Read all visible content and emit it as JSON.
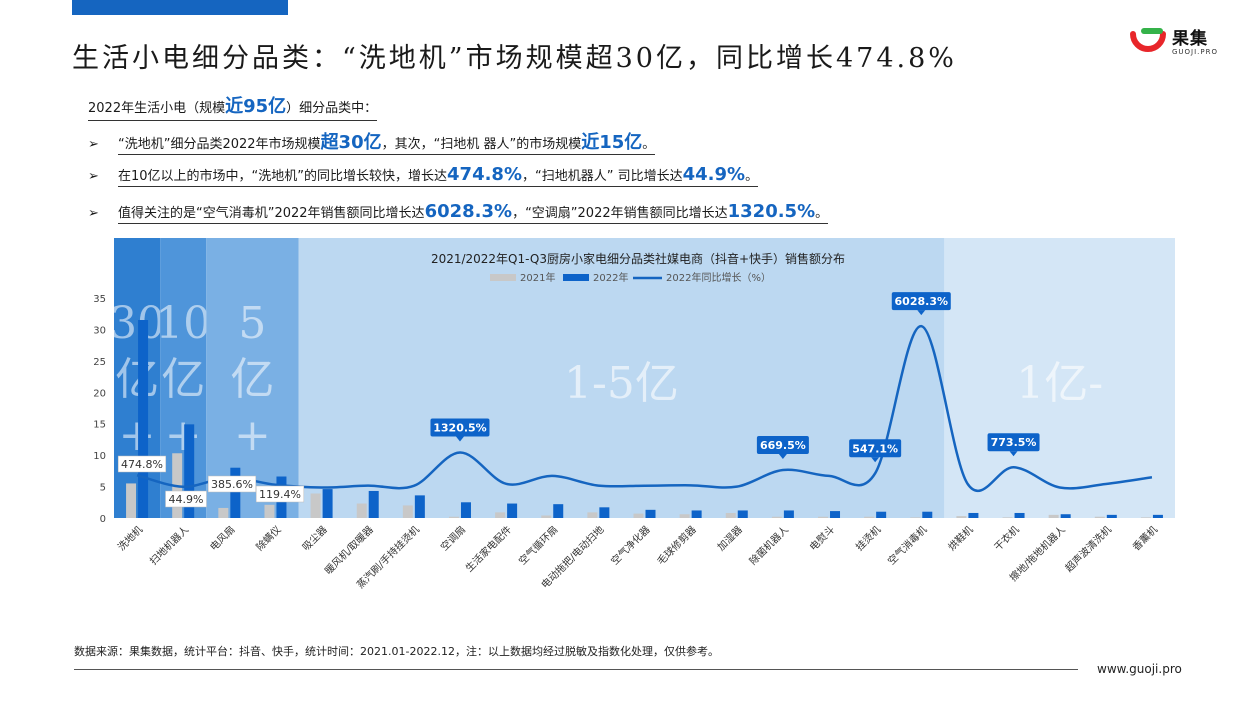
{
  "header": {
    "title": "生活小电细分品类：“洗地机”市场规模超30亿，同比增长474.8%",
    "logo_text": "果集",
    "logo_sub": "GUOJI.PRO"
  },
  "summary": {
    "intro_pre": "2022年生活小电（规模",
    "intro_hl": "近95亿",
    "intro_post": "）细分品类中：",
    "arrow": "➢",
    "b1_a": "“洗地机”细分品类2022年市场规模",
    "b1_hl1": "超30亿",
    "b1_b": "，其次，“扫地机 器人”的市场规模",
    "b1_hl2": "近15亿",
    "b1_c": "。",
    "b2_a": "在10亿以上的市场中，“洗地机”的同比增长较快，增长达",
    "b2_hl1": "474.8%",
    "b2_b": "，“扫地机器人” 司比增长达",
    "b2_hl2": "44.9%",
    "b2_c": "。",
    "b3_a": "值得关注的是“空气消毒机”2022年销售额同比增长达",
    "b3_hl1": "6028.3%",
    "b3_b": "，“空调扇”2022年销售额同比增长达",
    "b3_hl2": "1320.5%",
    "b3_c": "。"
  },
  "chart_data": {
    "type": "bar",
    "title": "2021/2022年Q1-Q3厨房小家电细分品类社媒电商（抖音+快手）销售额分布",
    "legend": [
      "2021年",
      "2022年",
      "2022年同比增长（%）"
    ],
    "legend_position": "top",
    "colors": {
      "y2021": "#c8c8c8",
      "y2022": "#0d63c9",
      "line": "#1565c0"
    },
    "ylim": [
      0,
      35
    ],
    "yticks": [
      0,
      5,
      10,
      15,
      20,
      25,
      30,
      35
    ],
    "categories": [
      "洗地机",
      "扫地机器人",
      "电风扇",
      "除螨仪",
      "吸尘器",
      "暖风机/取暖器",
      "蒸汽刷/手持挂烫机",
      "空调扇",
      "生活家电配件",
      "空气循环扇",
      "电动拖把/电动扫地",
      "空气净化器",
      "毛球修剪器",
      "加湿器",
      "除菌机器人",
      "电熨斗",
      "挂烫机",
      "空气消毒机",
      "烘鞋机",
      "干衣机",
      "擦地/拖地机器人",
      "超声波清洗机",
      "香薰机"
    ],
    "category_labels": [
      "洗地机",
      "扫地机器人",
      "电风扇",
      "除螨仪",
      "吸尘器",
      "暖风机/取暖器",
      "蒸汽刷/手持挂烫机",
      "空调扇",
      "生活家电配件",
      "空气循环扇",
      "电动拖把/电动扫地",
      "空气净化器",
      "毛球修剪器",
      "加湿器",
      "除菌机器人",
      "电熨斗",
      "挂烫机",
      "空气消毒机",
      "烘鞋机",
      "干衣机",
      "擦地/拖地机器人",
      "超声波清洗机",
      "香薰机"
    ],
    "series": [
      {
        "name": "2021年",
        "values": [
          5.5,
          10.3,
          1.6,
          2.1,
          3.9,
          2.3,
          2.0,
          0.2,
          0.9,
          0.4,
          0.9,
          0.7,
          0.6,
          0.8,
          0.2,
          0.2,
          0.2,
          0.1,
          0.3,
          0.1,
          0.5,
          0.2,
          0.1
        ]
      },
      {
        "name": "2022年",
        "values": [
          31.5,
          14.9,
          8.0,
          6.6,
          4.6,
          4.3,
          3.6,
          2.5,
          2.3,
          2.2,
          1.7,
          1.3,
          1.2,
          1.2,
          1.2,
          1.1,
          1.0,
          1.0,
          0.8,
          0.8,
          0.6,
          0.5,
          0.5
        ]
      },
      {
        "name": "2022年同比增长（%）",
        "values": [
          474.8,
          44.9,
          385.6,
          119.4,
          18,
          87,
          80,
          1320.5,
          156,
          450,
          89,
          86,
          100,
          50,
          669.5,
          450,
          547.1,
          6028.3,
          167,
          773.5,
          20,
          150,
          400
        ]
      }
    ],
    "line_scale_max": 7000,
    "data_labels": [
      {
        "index": 0,
        "text": "474.8%",
        "style": "plain"
      },
      {
        "index": 1,
        "text": "44.9%",
        "style": "plain"
      },
      {
        "index": 2,
        "text": "385.6%",
        "style": "plain"
      },
      {
        "index": 3,
        "text": "119.4%",
        "style": "plain"
      },
      {
        "index": 7,
        "text": "1320.5%",
        "style": "callout"
      },
      {
        "index": 14,
        "text": "669.5%",
        "style": "callout"
      },
      {
        "index": 16,
        "text": "547.1%",
        "style": "callout"
      },
      {
        "index": 17,
        "text": "6028.3%",
        "style": "callout"
      },
      {
        "index": 19,
        "text": "773.5%",
        "style": "callout"
      }
    ],
    "bands": [
      {
        "label": "30亿+",
        "from": 0,
        "to": 1
      },
      {
        "label": "10亿+",
        "from": 1,
        "to": 2
      },
      {
        "label": "5亿+",
        "from": 2,
        "to": 4
      },
      {
        "label": "1-5亿",
        "from": 4,
        "to": 18
      },
      {
        "label": "1亿-",
        "from": 18,
        "to": 23
      }
    ],
    "grid": false
  },
  "footer": {
    "source": "数据来源：果集数据，统计平台：抖音、快手，统计时间：2021.01-2022.12，注：以上数据均经过脱敏及指数化处理，仅供参考。",
    "url": "www.guoji.pro"
  }
}
